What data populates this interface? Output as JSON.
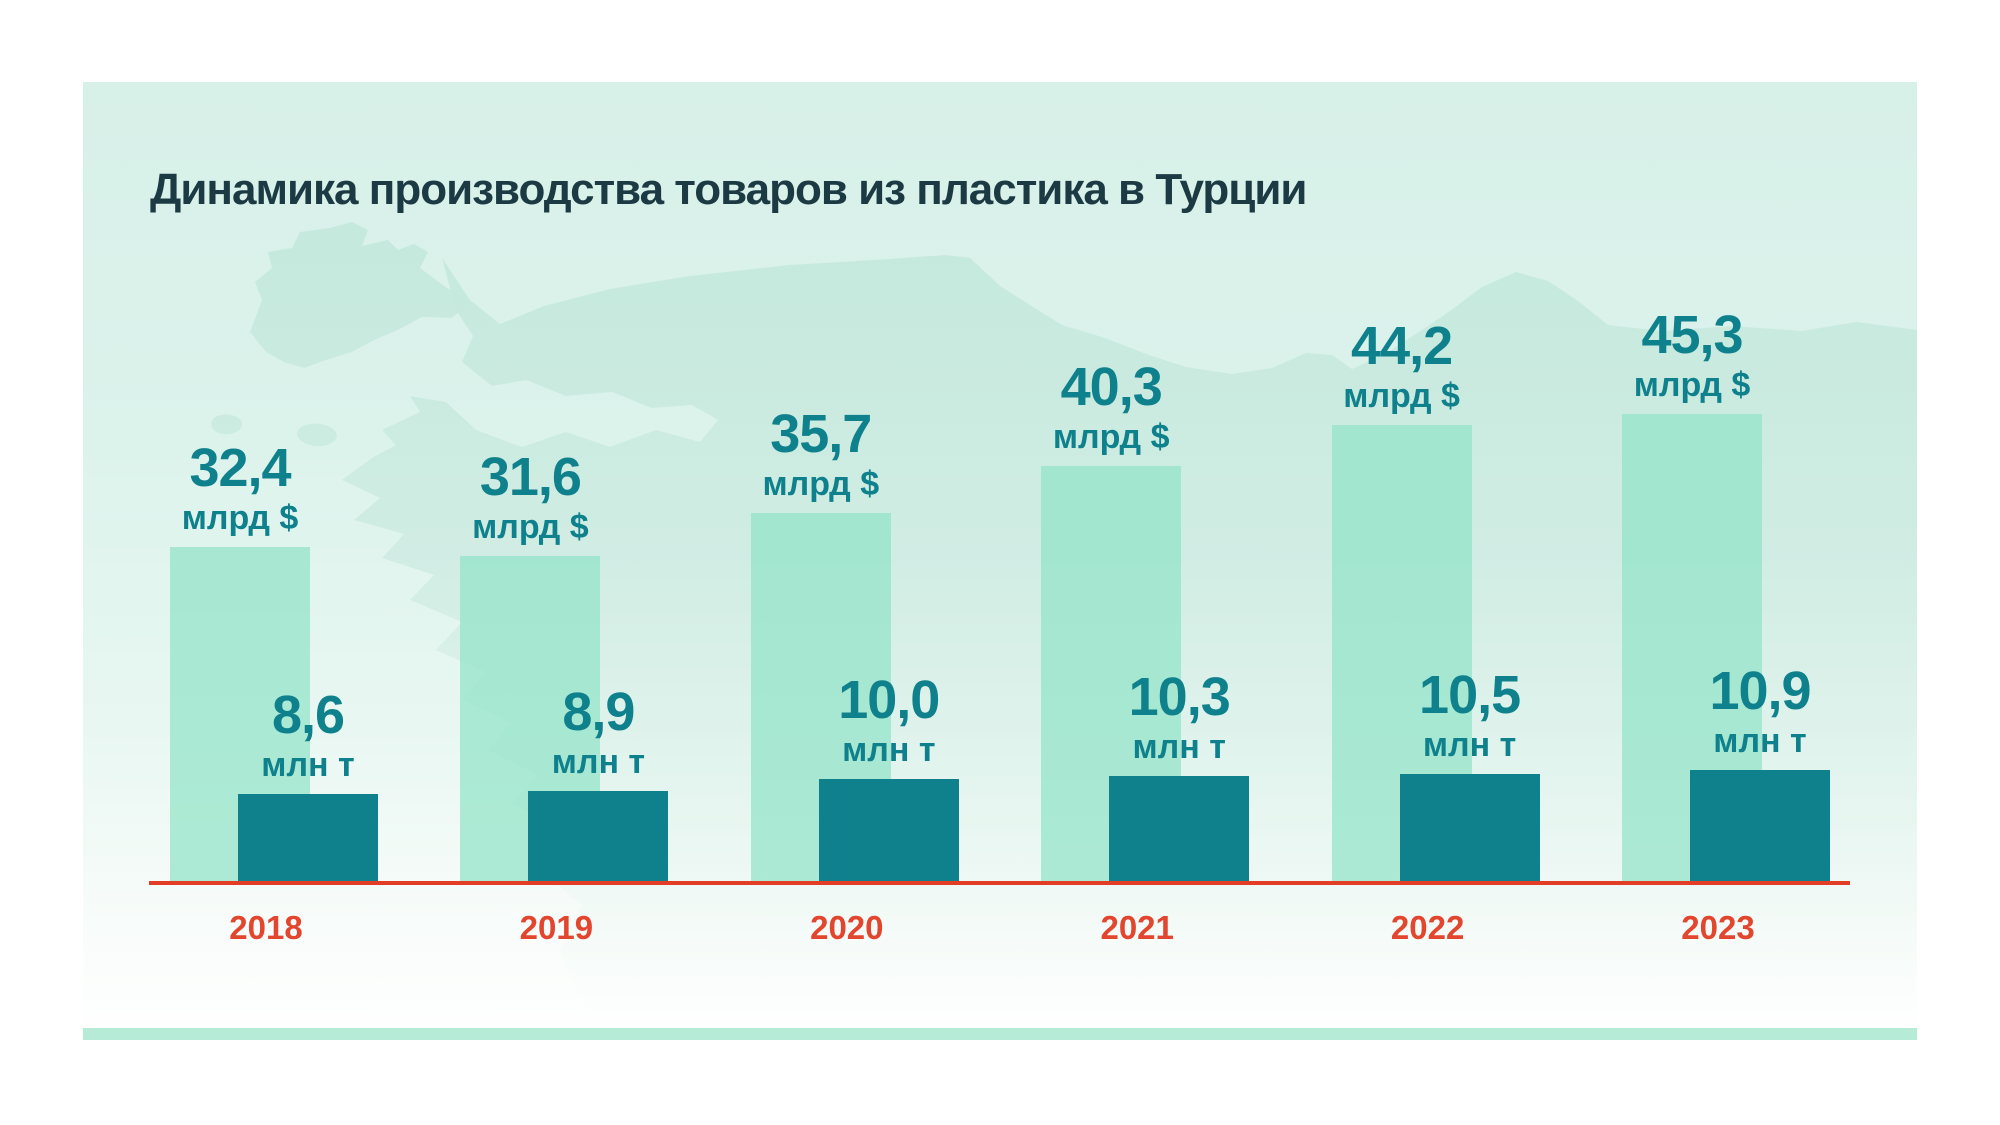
{
  "title": "Динамика производства товаров из пластика в Турции",
  "chart_data": {
    "type": "bar",
    "title": "Динамика производства товаров из пластика в Турции",
    "categories": [
      "2018",
      "2019",
      "2020",
      "2021",
      "2022",
      "2023"
    ],
    "series": [
      {
        "unit": "млрд $",
        "values": [
          32.4,
          31.6,
          35.7,
          40.3,
          44.2,
          45.3
        ],
        "labels": [
          "32,4",
          "31,6",
          "35,7",
          "40,3",
          "44,2",
          "45,3"
        ]
      },
      {
        "unit": "млн т",
        "values": [
          8.6,
          8.9,
          10.0,
          10.3,
          10.5,
          10.9
        ],
        "labels": [
          "8,6",
          "8,9",
          "10,0",
          "10,3",
          "10,5",
          "10,9"
        ]
      }
    ],
    "xlabel": "",
    "ylabel": "",
    "ylim": [
      0,
      46.5
    ],
    "grid": false,
    "legend_position": "none",
    "value_label_format": "decimal-comma",
    "background": "turkey-map-silhouette"
  },
  "colors": {
    "usd_bar": "rgba(146,227,199,0.72)",
    "tons_bar": "#0e818d",
    "value_text": "#0e818d",
    "title_text": "#1c3a43",
    "year_text": "#e2462e",
    "axis_line": "#e23d27",
    "bottom_strip": "#b6ebd8",
    "map_silhouette": "#c2e8db",
    "panel_top": "#d7f0e8",
    "panel_bottom": "#ffffff"
  }
}
